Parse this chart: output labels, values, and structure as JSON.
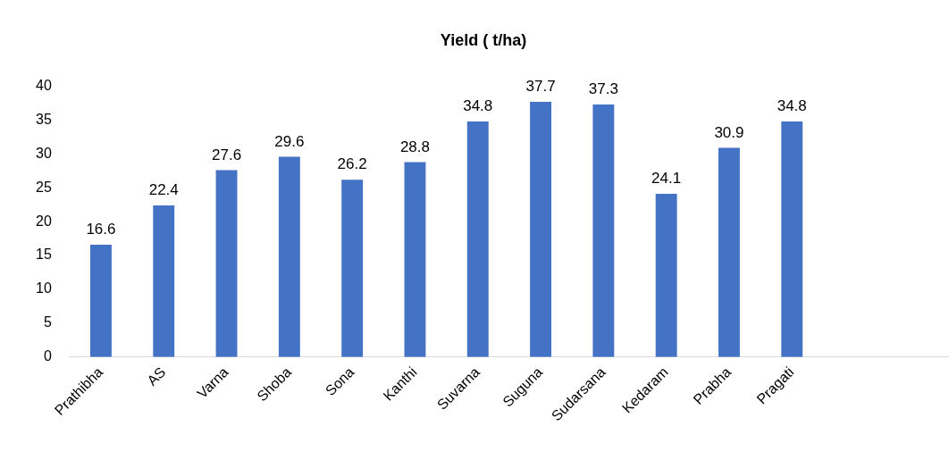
{
  "chart_data": {
    "type": "bar",
    "title": "Yield ( t/ha)",
    "categories": [
      "Prathibha",
      "AS",
      "Varna",
      "Shoba",
      "Sona",
      "Kanthi",
      "Suvarna",
      "Suguna",
      "Sudarsana",
      "Kedaram",
      "Prabha",
      "Pragati",
      null,
      null
    ],
    "values": [
      16.6,
      22.4,
      27.6,
      29.6,
      26.2,
      28.8,
      34.8,
      37.7,
      37.3,
      24.1,
      30.9,
      34.8,
      null,
      null
    ],
    "color": "#4472c4",
    "ylim": [
      0,
      40
    ],
    "yticks": [
      0,
      5,
      10,
      15,
      20,
      25,
      30,
      35,
      40
    ],
    "grid": false,
    "legend": false,
    "data_labels": true
  }
}
